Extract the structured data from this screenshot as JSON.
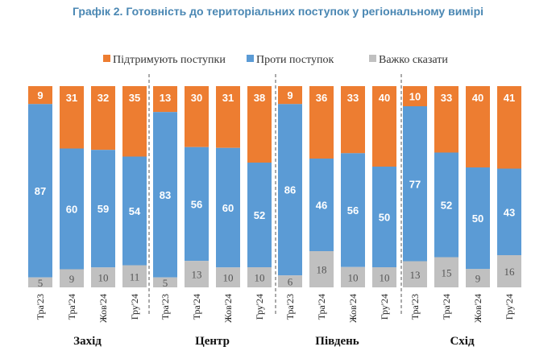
{
  "title": "Графік 2. Готовність до територіальних поступок у регіональному вимірі",
  "colors": {
    "support": "#ed7d31",
    "against": "#5b9bd5",
    "hard": "#c0c0c0"
  },
  "chart_data": {
    "type": "bar",
    "stacked": true,
    "title": "Графік 2. Готовність до територіальних поступок у регіональному вимірі",
    "legend": {
      "placement": "top-right",
      "entries": [
        "Підтримують поступки",
        "Проти поступок",
        "Важко сказати"
      ]
    },
    "ylim": [
      0,
      100
    ],
    "groups": [
      {
        "name": "Захід",
        "categories": [
          "Тра'23",
          "Тра'24",
          "Жов'24",
          "Гру'24"
        ],
        "series": [
          {
            "name": "Підтримують поступки",
            "values": [
              9,
              31,
              32,
              35
            ]
          },
          {
            "name": "Проти поступок",
            "values": [
              87,
              60,
              59,
              54
            ]
          },
          {
            "name": "Важко сказати",
            "values": [
              5,
              9,
              10,
              11
            ]
          }
        ]
      },
      {
        "name": "Центр",
        "categories": [
          "Тра'23",
          "Тра'24",
          "Жов'24",
          "Гру'24"
        ],
        "series": [
          {
            "name": "Підтримують поступки",
            "values": [
              13,
              30,
              31,
              38
            ]
          },
          {
            "name": "Проти поступок",
            "values": [
              83,
              56,
              60,
              52
            ]
          },
          {
            "name": "Важко сказати",
            "values": [
              5,
              13,
              10,
              10
            ]
          }
        ]
      },
      {
        "name": "Південь",
        "categories": [
          "Тра'23",
          "Тра'24",
          "Жов'24",
          "Гру'24"
        ],
        "series": [
          {
            "name": "Підтримують поступки",
            "values": [
              9,
              36,
              33,
              40
            ]
          },
          {
            "name": "Проти поступок",
            "values": [
              86,
              46,
              56,
              50
            ]
          },
          {
            "name": "Важко сказати",
            "values": [
              6,
              18,
              10,
              10
            ]
          }
        ]
      },
      {
        "name": "Схід",
        "categories": [
          "Тра'23",
          "Тра'24",
          "Жов'24",
          "Гру'24"
        ],
        "series": [
          {
            "name": "Підтримують поступки",
            "values": [
              10,
              33,
              40,
              41
            ]
          },
          {
            "name": "Проти поступок",
            "values": [
              77,
              52,
              50,
              43
            ]
          },
          {
            "name": "Важко сказати",
            "values": [
              13,
              15,
              9,
              16
            ]
          }
        ]
      }
    ]
  }
}
